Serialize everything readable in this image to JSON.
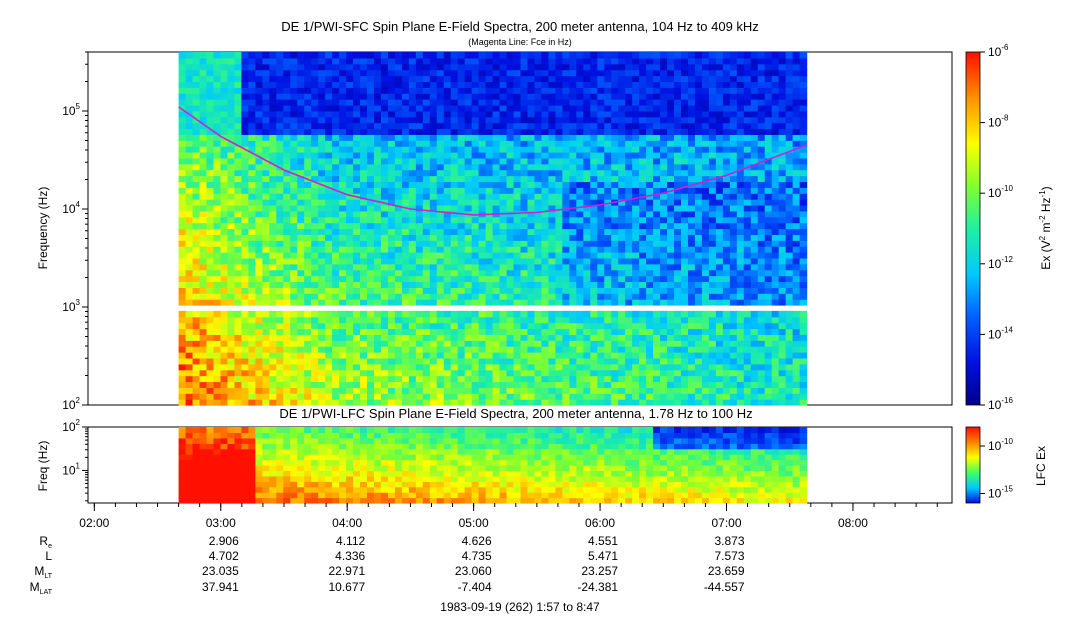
{
  "chart_data": [
    {
      "type": "heatmap",
      "title": "DE 1/PWI-SFC  Spin Plane E-Field Spectra, 200 meter antenna, 104 Hz to 409 kHz",
      "subtitle": "(Magenta Line: Fce in Hz)",
      "ylabel": "Frequency (Hz)",
      "yscale": "log",
      "ylim": [
        100,
        400000
      ],
      "yticks": [
        {
          "value": 100,
          "base": "10",
          "exp": "2"
        },
        {
          "value": 1000,
          "base": "10",
          "exp": "3"
        },
        {
          "value": 10000,
          "base": "10",
          "exp": "4"
        },
        {
          "value": 100000,
          "base": "10",
          "exp": "5"
        }
      ],
      "data_time_range": [
        "02:40",
        "07:38"
      ],
      "colorbar": {
        "label_main": "Ex (V",
        "label_sup1": "2",
        "label_mid": " m",
        "label_sup2": "-2",
        "label_mid2": " Hz",
        "label_sup3": "-1",
        "label_end": ")",
        "scale": "log",
        "range": [
          1e-16,
          1e-06
        ],
        "ticks": [
          {
            "value": 1e-16,
            "base": "10",
            "exp": "-16"
          },
          {
            "value": 1e-14,
            "base": "10",
            "exp": "-14"
          },
          {
            "value": 1e-12,
            "base": "10",
            "exp": "-12"
          },
          {
            "value": 1e-10,
            "base": "10",
            "exp": "-10"
          },
          {
            "value": 1e-08,
            "base": "10",
            "exp": "-8"
          },
          {
            "value": 1e-06,
            "base": "10",
            "exp": "-6"
          }
        ]
      },
      "fce_line": {
        "color": "#d020d0",
        "points": [
          {
            "t": "02:40",
            "f": 110000
          },
          {
            "t": "03:00",
            "f": 55000
          },
          {
            "t": "03:30",
            "f": 25000
          },
          {
            "t": "04:00",
            "f": 14000
          },
          {
            "t": "04:30",
            "f": 10000
          },
          {
            "t": "05:00",
            "f": 8700
          },
          {
            "t": "05:30",
            "f": 9200
          },
          {
            "t": "06:00",
            "f": 11000
          },
          {
            "t": "06:30",
            "f": 14500
          },
          {
            "t": "07:00",
            "f": 22000
          },
          {
            "t": "07:38",
            "f": 45000
          }
        ]
      }
    },
    {
      "type": "heatmap",
      "title": "DE 1/PWI-LFC  Spin Plane E-Field Spectra, 200 meter antenna, 1.78 Hz to 100 Hz",
      "ylabel": "Freq (Hz)",
      "yscale": "log",
      "ylim": [
        1.78,
        100
      ],
      "yticks": [
        {
          "value": 10,
          "base": "10",
          "exp": "1"
        },
        {
          "value": 100,
          "base": "10",
          "exp": "2"
        }
      ],
      "data_time_range": [
        "02:40",
        "07:38"
      ],
      "colorbar": {
        "label": "LFC Ex",
        "scale": "log",
        "range": [
          1e-16,
          1e-08
        ],
        "ticks": [
          {
            "value": 1e-15,
            "base": "10",
            "exp": "-15"
          },
          {
            "value": 1e-10,
            "base": "10",
            "exp": "-10"
          }
        ]
      }
    }
  ],
  "time_axis": {
    "range": [
      "01:57",
      "08:47"
    ],
    "ticks": [
      "02:00",
      "03:00",
      "04:00",
      "05:00",
      "06:00",
      "07:00",
      "08:00"
    ]
  },
  "ephemeris": {
    "rows": [
      {
        "label": "R",
        "sub": "e",
        "values": [
          "2.906",
          "4.112",
          "4.626",
          "4.551",
          "3.873"
        ]
      },
      {
        "label": "L",
        "sub": "",
        "values": [
          "4.702",
          "4.336",
          "4.735",
          "5.471",
          "7.573"
        ]
      },
      {
        "label": "M",
        "sub": "LT",
        "values": [
          "23.035",
          "22.971",
          "23.060",
          "23.257",
          "23.659"
        ]
      },
      {
        "label": "M",
        "sub": "LAT",
        "values": [
          "37.941",
          "10.677",
          "-7.404",
          "-24.381",
          "-44.557"
        ]
      }
    ],
    "times": [
      "03:00",
      "04:00",
      "05:00",
      "06:00",
      "07:00"
    ]
  },
  "footer": "1983-09-19 (262) 1:57 to 8:47"
}
